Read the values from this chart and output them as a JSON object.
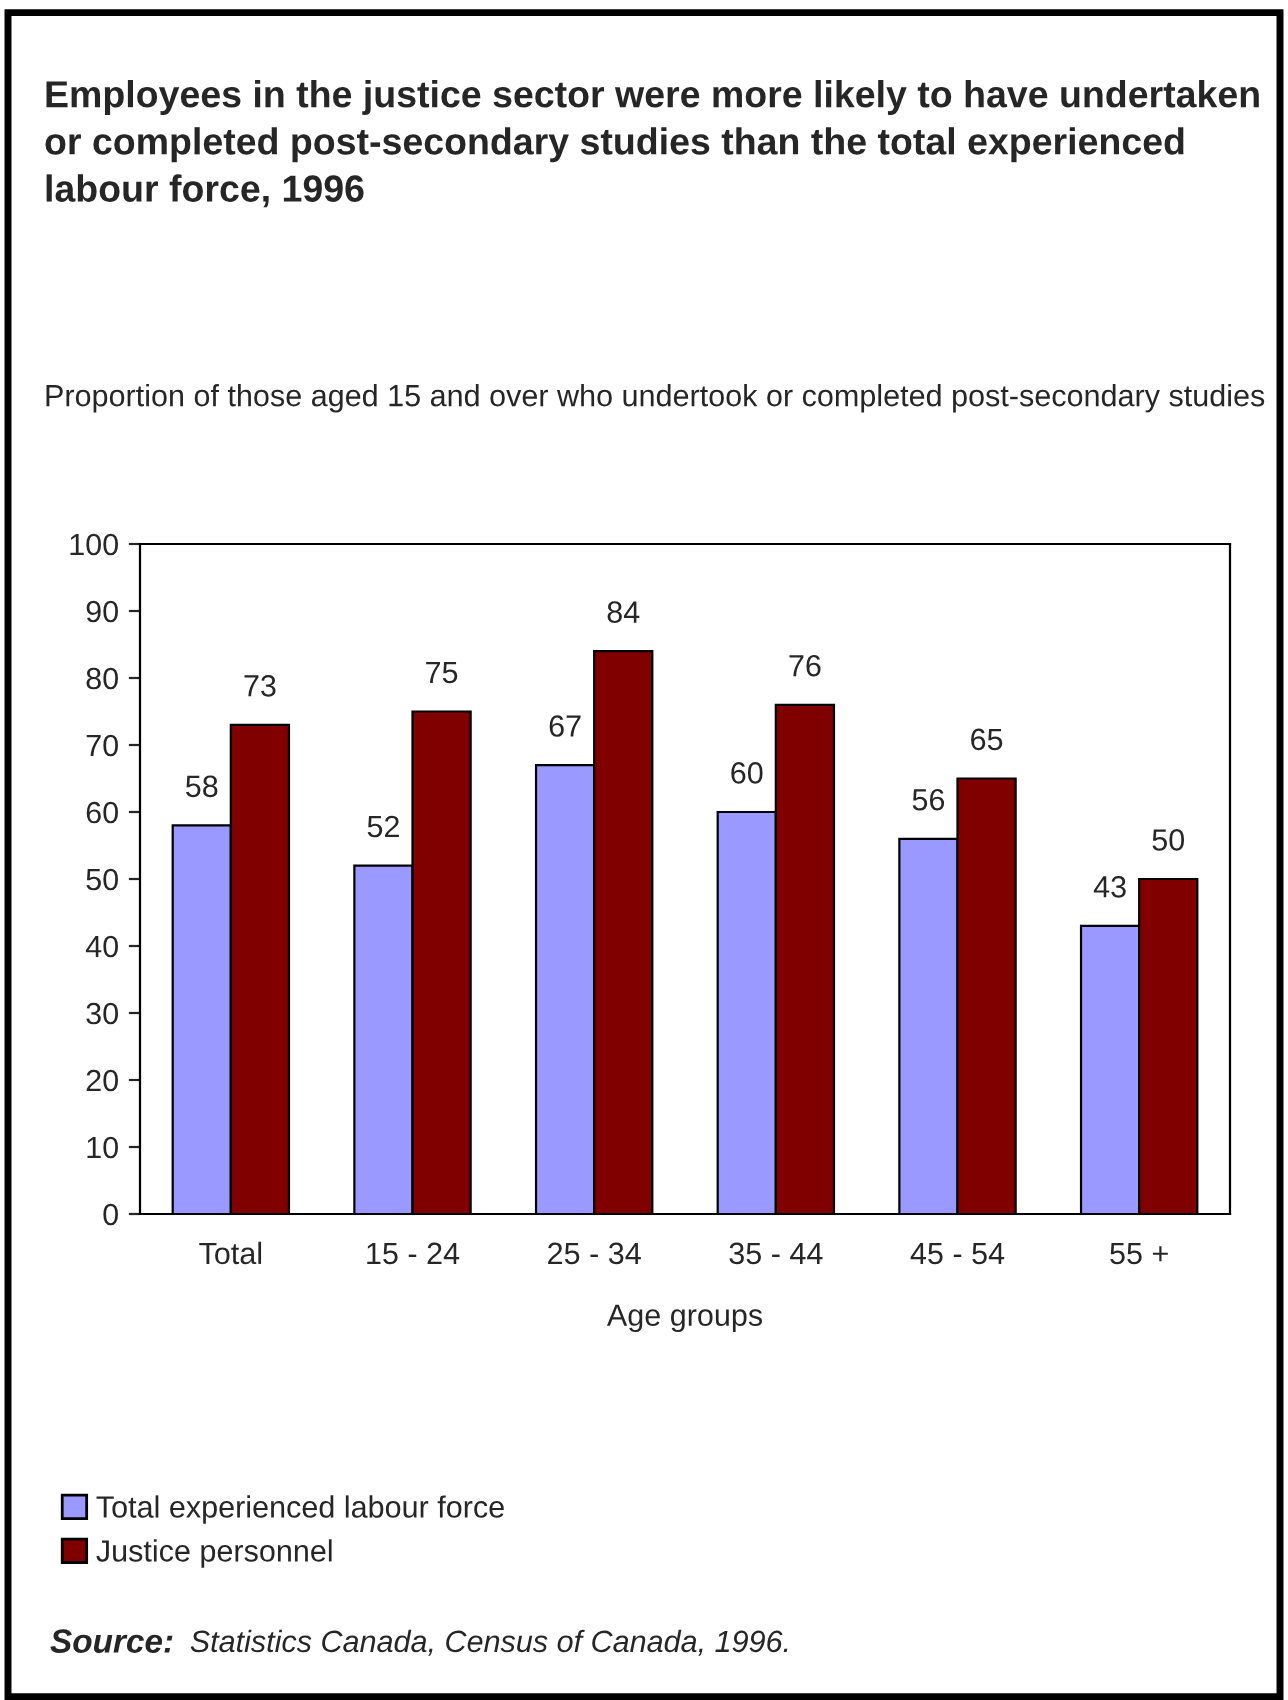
{
  "chart_data": {
    "type": "bar",
    "title": "Employees in the justice sector were more likely to have undertaken or completed post-secondary studies than the total experienced labour force, 1996",
    "ylabel": "Proportion of those aged 15 and over who undertook or completed post-secondary studies",
    "xlabel": "Age groups",
    "categories": [
      "Total",
      "15 - 24",
      "25 - 34",
      "35 - 44",
      "45 - 54",
      "55 +"
    ],
    "series": [
      {
        "name": "Total experienced labour force",
        "color": "#9999ff",
        "values": [
          58,
          52,
          67,
          60,
          56,
          43
        ]
      },
      {
        "name": "Justice personnel",
        "color": "#800000",
        "values": [
          73,
          75,
          84,
          76,
          65,
          50
        ]
      }
    ],
    "ylim": [
      0,
      100
    ],
    "yticks": [
      0,
      10,
      20,
      30,
      40,
      50,
      60,
      70,
      80,
      90,
      100
    ],
    "data_labels": true,
    "grid": false,
    "legend": "bottom left",
    "annotations": [
      "Source:",
      "Statistics Canada, Census of Canada, 1996."
    ]
  }
}
